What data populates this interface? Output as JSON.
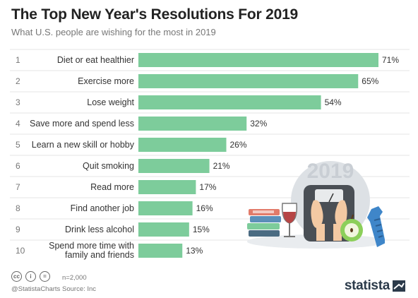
{
  "header": {
    "title": "The Top New Year's Resolutions For 2019",
    "subtitle": "What U.S. people are wishing for the most in 2019"
  },
  "chart_data": {
    "type": "bar",
    "orientation": "horizontal",
    "ranks": [
      "1",
      "2",
      "3",
      "4",
      "5",
      "6",
      "7",
      "8",
      "9",
      "10"
    ],
    "categories": [
      "Diet or eat healthier",
      "Exercise more",
      "Lose weight",
      "Save more and spend less",
      "Learn a new skill or hobby",
      "Quit smoking",
      "Read more",
      "Find another job",
      "Drink less alcohol",
      "Spend more time with family and friends"
    ],
    "values": [
      71,
      65,
      54,
      32,
      26,
      21,
      17,
      16,
      15,
      13
    ],
    "value_labels": [
      "71%",
      "65%",
      "54%",
      "32%",
      "26%",
      "21%",
      "17%",
      "16%",
      "15%",
      "13%"
    ],
    "unit": "%",
    "bar_color": "#7dcc9b",
    "grid": false,
    "row_separators": true
  },
  "illustration": {
    "year_text": "2019"
  },
  "footer": {
    "cc_icons": [
      "cc",
      "i",
      "="
    ],
    "credit": "@StatistaCharts",
    "sample": "n=2,000",
    "source": "Source: Inc",
    "brand": "statista"
  }
}
